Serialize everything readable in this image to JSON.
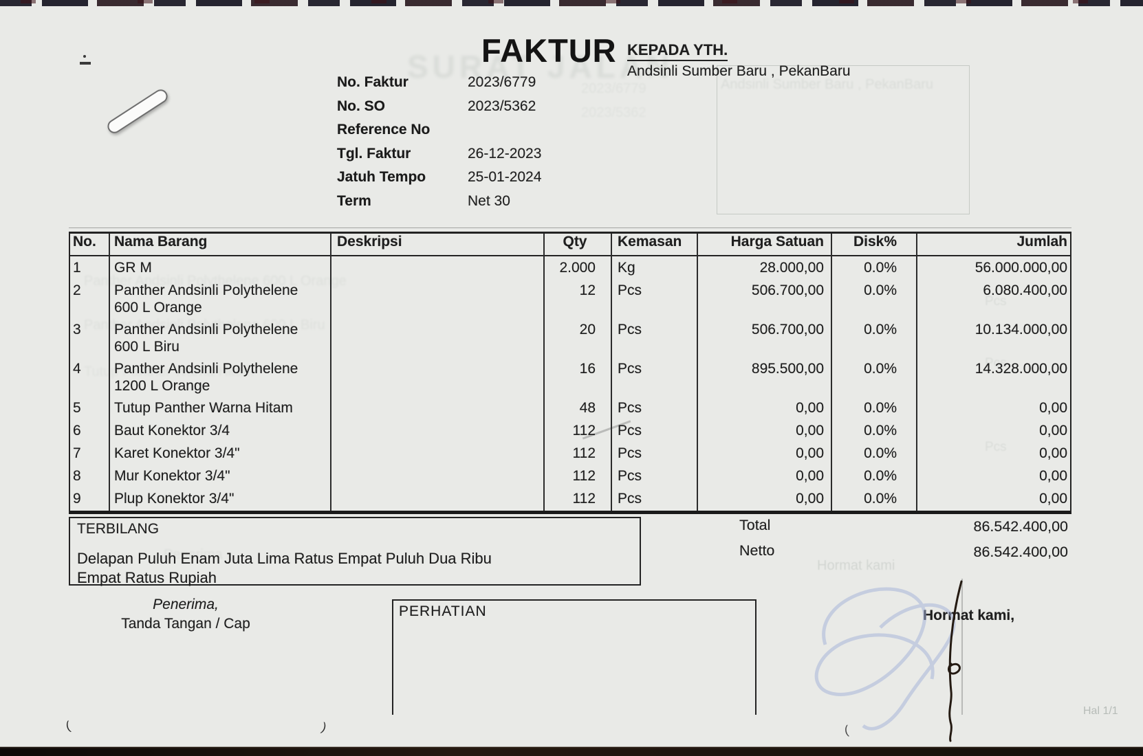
{
  "header": {
    "title": "FAKTUR",
    "recipient_label": "KEPADA YTH.",
    "recipient_name": "Andsinli Sumber Baru , PekanBaru"
  },
  "meta": {
    "rows": [
      {
        "label": "No. Faktur",
        "value": "2023/6779"
      },
      {
        "label": "No. SO",
        "value": "2023/5362"
      },
      {
        "label": "Reference No",
        "value": ""
      },
      {
        "label": "Tgl. Faktur",
        "value": "26-12-2023"
      },
      {
        "label": "Jatuh Tempo",
        "value": "25-01-2024"
      },
      {
        "label": "Term",
        "value": "Net 30"
      }
    ]
  },
  "items": {
    "columns": [
      "No.",
      "Nama Barang",
      "Deskripsi",
      "Qty",
      "Kemasan",
      "Harga Satuan",
      "Disk%",
      "Jumlah"
    ],
    "rows": [
      {
        "no": "1",
        "nama": [
          "GR M"
        ],
        "deskripsi": "",
        "qty": "2.000",
        "kemasan": "Kg",
        "harga": "28.000,00",
        "disk": "0.0%",
        "jumlah": "56.000.000,00"
      },
      {
        "no": "2",
        "nama": [
          "Panther Andsinli Polythelene",
          "600 L Orange"
        ],
        "deskripsi": "",
        "qty": "12",
        "kemasan": "Pcs",
        "harga": "506.700,00",
        "disk": "0.0%",
        "jumlah": "6.080.400,00"
      },
      {
        "no": "3",
        "nama": [
          "Panther Andsinli Polythelene",
          "600 L Biru"
        ],
        "deskripsi": "",
        "qty": "20",
        "kemasan": "Pcs",
        "harga": "506.700,00",
        "disk": "0.0%",
        "jumlah": "10.134.000,00"
      },
      {
        "no": "4",
        "nama": [
          "Panther Andsinli Polythelene",
          "1200 L Orange"
        ],
        "deskripsi": "",
        "qty": "16",
        "kemasan": "Pcs",
        "harga": "895.500,00",
        "disk": "0.0%",
        "jumlah": "14.328.000,00"
      },
      {
        "no": "5",
        "nama": [
          "Tutup Panther Warna Hitam"
        ],
        "deskripsi": "",
        "qty": "48",
        "kemasan": "Pcs",
        "harga": "0,00",
        "disk": "0.0%",
        "jumlah": "0,00"
      },
      {
        "no": "6",
        "nama": [
          "Baut Konektor 3/4"
        ],
        "deskripsi": "",
        "qty": "112",
        "kemasan": "Pcs",
        "harga": "0,00",
        "disk": "0.0%",
        "jumlah": "0,00"
      },
      {
        "no": "7",
        "nama": [
          "Karet Konektor 3/4\""
        ],
        "deskripsi": "",
        "qty": "112",
        "kemasan": "Pcs",
        "harga": "0,00",
        "disk": "0.0%",
        "jumlah": "0,00"
      },
      {
        "no": "8",
        "nama": [
          "Mur Konektor 3/4\""
        ],
        "deskripsi": "",
        "qty": "112",
        "kemasan": "Pcs",
        "harga": "0,00",
        "disk": "0.0%",
        "jumlah": "0,00"
      },
      {
        "no": "9",
        "nama": [
          "Plup Konektor 3/4\""
        ],
        "deskripsi": "",
        "qty": "112",
        "kemasan": "Pcs",
        "harga": "0,00",
        "disk": "0.0%",
        "jumlah": "0,00"
      }
    ]
  },
  "terbilang": {
    "label": "TERBILANG",
    "line1": "Delapan Puluh Enam Juta Lima Ratus Empat Puluh Dua Ribu",
    "line2": "Empat Ratus Rupiah"
  },
  "totals": {
    "total_label": "Total",
    "total_value": "86.542.400,00",
    "netto_label": "Netto",
    "netto_value": "86.542.400,00"
  },
  "footer": {
    "penerima_line1": "Penerima,",
    "penerima_line2": "Tanda Tangan / Cap",
    "perhatian_label": "PERHATIAN",
    "hormat_label": "Hormat kami,",
    "page_label": "Hal 1/1"
  },
  "ghosts": {
    "title": "SURAT JALAN",
    "recipient": "Andsinli Sumber Baru , PekanBaru",
    "meta1": "2023/6779",
    "meta2": "2023/5362",
    "item1": "Panther Andsinli Polythelene 600 L Orange",
    "item2": "Panther Andsinli Polythelene 600 L Biru",
    "item3": "Tutup Panther Warna Hitam",
    "pcs": "Pcs",
    "hormat": "Hormat kami",
    "penerima": "Penerima"
  },
  "marks": {
    "tick_open": "(",
    "tick_close": ")"
  },
  "colors": {
    "paper": "#e8e9e6",
    "ink": "#1f1f1f",
    "pink_edge": "#f3dfe2",
    "signature_blue": "#a3b1d8"
  }
}
